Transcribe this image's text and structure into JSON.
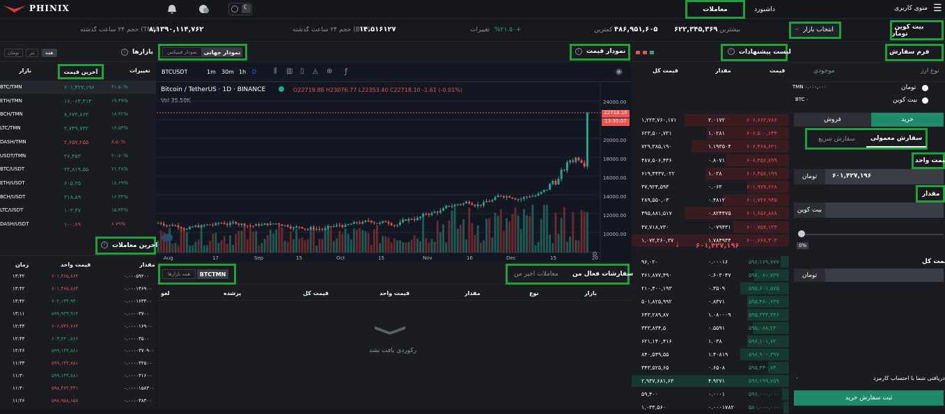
{
  "brand": "PHINIX",
  "nav": {
    "menu": "منوی کاربری",
    "dashboard": "داشبورد",
    "trades": "معاملات"
  },
  "ticker": {
    "pair": "بیت کوین / تومان",
    "market_select": "انتخاب بازار",
    "high_label": "بیشترین",
    "high": "۶۲۲,۳۴۵,۳۶۹",
    "low_label": "کمترین",
    "low": "۴۸۶,۹۵۱,۶۰۵",
    "change_label": "تغییرات",
    "change": "%۲۱.۵۰+",
    "vol_btc_label": "حجم ۲۴ ساعت گذشته (BTC)",
    "vol_btc": "۱۴.۵۱۶۱۲۷",
    "vol_tmn_label": "حجم ۲۴ ساعت گذشته (TMN)",
    "vol_tmn": "۸,۱۳۹۰,۱۱۴,۷۶۲"
  },
  "order_form": {
    "title": "فرم سفارش",
    "asset_type": "نوع ارز",
    "balance": "موجودی",
    "toman_label": "تومان",
    "toman_balance": "TMN ۰.۰۰۰,۰۰۰",
    "btc_label": "بیت کوین",
    "btc_balance": "BTC ۰",
    "buy": "خرید",
    "sell": "فروش",
    "tab_normal": "سفارش معمولی",
    "tab_quick": "سفارش سریع",
    "unit_price_label": "قیمت واحد",
    "unit_price": "۶۰۱,۴۲۷,۱۹۶",
    "unit_toman": "تومان",
    "amount_label": "مقدار",
    "amount_unit": "بیت کوین",
    "slider_pct": "0%",
    "total_label": "قیمت کل",
    "total_unit": "تومان",
    "receive_label": "دریافتی شما با احتساب کارمزد",
    "receive_value": "۰",
    "submit": "ثبت سفارش خرید"
  },
  "orderbook": {
    "title": "لیست پیشنهادات",
    "col_price": "قیمت",
    "col_amount": "مقدار",
    "col_total": "قیمت کل",
    "asks": [
      [
        "۶۰۶,۶۶۲,۷۸۶",
        "۲.۰۱۷۲",
        "۱,۲۲۳,۷۶۰,۱۷۱"
      ],
      [
        "۶۰۶,۵۰۰,۶۴۴",
        "۱.۰۲۸۱",
        "۶۲۳,۵۰۰,۷۲۱"
      ],
      [
        "۶۰۶,۴۶۸,۶۲۱",
        "۱.۱۹۳۵۰۴",
        "۷۲۹,۳۸۵,۱۹۰"
      ],
      [
        "۶۰۶,۴۵۶,۸۹۹",
        "۰.۸۰۷۱",
        "۴۸۷,۵۰۶,۴۳۶"
      ],
      [
        "۶۰۶,۴۵۸,۱۹۹",
        "۱.۰۲۸",
        "۶۱۹,۴۴۳۷,۰۲۲"
      ],
      [
        "۶۰۱,۹۷۷,۶۶۸",
        "۰.۰۶۳",
        "۳۷,۹۲۴,۵۹۳"
      ],
      [
        "۶۰۱,۷۲۶,۹۴۵",
        "۰.۴۸۱۲",
        "۲۸۹,۵۵۰,۰۳"
      ],
      [
        "۶۰۱,۶۵۶,۸۸۸",
        "۰.۸۲۴۴۷۵",
        "۴۹۵,۸۸۱,۵۱۷"
      ],
      [
        "۶۰۰,۷۵۷,۱۲۴",
        "۰.۰۷۹۴۳۱",
        "۴۷,۷۱۸,۷۳۰"
      ],
      [
        "۶۰۰,۷۶۸,۳۰۳",
        "۱.۷۸۴۹۳۴",
        "۱,۰۷۲,۲۶۰,۳۷"
      ]
    ],
    "mid": "۶۰۱,۴۲۷,۱۹۶",
    "bids": [
      [
        "۵۹۶,۱۶۹,۷۷۷",
        "۰.۰۰۰۱۶",
        "۹۶,۰۲۰"
      ],
      [
        "۵۹۶,۰۸۱,۷۳۷",
        "۰.۶۰۳۰۴۷",
        "۳۶۱,۸۷۷,۴۹۰"
      ],
      [
        "۵۹۵,۶۰۱,۵۷۵",
        "۰.۳۵۰۹",
        "۲۱۰,۴۰۰,۱۹۳"
      ],
      [
        "۵۹۵,۴۸۰,۷۳۷",
        "۰.۸۳۷۱",
        "۵۰۱,۸۲۵,۹۹۲"
      ],
      [
        "۵۹۵,۳۳۳,۳۴۶",
        "۱.۰۸۰۰۰۹",
        "۶۴۳,۲۸۹,۸۷"
      ],
      [
        "۵۹۵,۰۸۸,۲۳",
        "۰.۵۵۹۱",
        "۳۳۳,۸۳۴,۵"
      ],
      [
        "۵۹۶,۱۰۱,۷۲",
        "۱.۰۳۸",
        "۶۲۱,۱۴۰,۴۱۶"
      ],
      [
        "۵۹۶,۹۰۰,۳۹۷",
        "۱.۴۰۸۱۹",
        "۸۴۰,۵۴۹,۵۵"
      ],
      [
        "۵۹۵,۴۴۰,۶۴",
        "۰.۶۵۰۸",
        "۳۴۳,۵۲۵,۶۵"
      ],
      [
        "۵۹۶,۱۹۹,۷۵۹",
        "۴.۹۲۷۱",
        "۲,۹۳۷,۶۸۱,۶۳"
      ],
      [
        "۵۹۶,۰۰۰,۰۰۰",
        "۰.۰۰۰۱",
        "۵۹,۴۰۰"
      ],
      [
        "۵۸۰,۰۰۰,۰۰۰",
        "۰.۰۰۰۱۷۸۲",
        "۱,۰۳۳,۵۶۰"
      ]
    ]
  },
  "chart_header": {
    "title": "نمودار قیمت",
    "tab_global": "نمودار جهانی",
    "tab_phinix": "نمودار فینیکس"
  },
  "tv": {
    "symbol": "BTCUSDT",
    "intervals": [
      "1m",
      "30m",
      "1h",
      "D"
    ],
    "legend_title": "Bitcoin / TetherUS · 1D · BINANCE",
    "ohlc": "O22719.88 H23076.77 L22353.40 C22718.10 -1.61 (-0.01%)",
    "vol": "Vol 35.59K",
    "last_price": "22718.10",
    "countdown": "13:35:07",
    "x_labels": [
      "Aug",
      "17",
      "Sep",
      "15",
      "Oct",
      "15",
      "Nov",
      "16",
      "Dec",
      "15",
      "20"
    ],
    "y_labels": [
      "24000.00",
      "22000.00",
      "20000.00",
      "18000.00",
      "16000.00",
      "14000.00",
      "12000.00",
      "10000.00"
    ]
  },
  "markets": {
    "title": "بازارها",
    "filters": [
      "همه",
      "تتر",
      "تومان"
    ],
    "col_change": "تغییرات",
    "col_last": "آخرین قیمت",
    "col_market": "بازار",
    "rows": [
      [
        "BTC/TMN",
        "۶۰۱,۴۲۷,۱۹۶",
        "۲۱.۵۰%",
        "g"
      ],
      [
        "ETH/TMN",
        "۱۶,۰۶۳,۳۱۴",
        "۱۹.۴۹%",
        "g"
      ],
      [
        "BCH/TMN",
        "۸,۶۷۲,۸۶۳",
        "۱۸.۳۲%",
        "g"
      ],
      [
        "LTC/TMN",
        "۲,۷۴۹,۷۳۲",
        "۱۶.۵۳%",
        "g"
      ],
      [
        "DASH/TMN",
        "۲,۶۵۷,۲۵۵",
        "۸.۵۰%",
        "r"
      ],
      [
        "USDT/TMN",
        "۲۶,۴۵۳",
        "۲۰.۷۰%",
        "g"
      ],
      [
        "BTC/USDT",
        "۲۲,۸۱۹.۵۵",
        "۲۱.۴۸%",
        "g"
      ],
      [
        "ETH/USDT",
        "۶۰۵.۳۵",
        "۱۸.۶۹%",
        "g"
      ],
      [
        "BCH/USDT",
        "۳۱۸.۸۹",
        "۱۶.۳۴%",
        "g"
      ],
      [
        "LTC/USDT",
        "۱۰۳.۳۷",
        "۱۵.۴۴%",
        "g"
      ],
      [
        "DASH/USDT",
        "۱۰۰.۶۹",
        "۶.۷۹%",
        "r"
      ]
    ]
  },
  "recent": {
    "title": "آخرین معاملات",
    "col_amount": "مقدار",
    "col_price": "قیمت واحد",
    "col_time": "زمان",
    "rows": [
      [
        "۰.۰۰۰۵۹۲۰۰",
        "۶۰۱,۴۶۵,۸۶۴",
        "۱۳:۴۲",
        "r"
      ],
      [
        "۰.۰۰۰۱۴۶۹۰۰",
        "۶۰۱,۴۶۵,۸۶۴",
        "۱۳:۴۲",
        "r"
      ],
      [
        "۰.۰۰۰۱۶۳۳۰۰",
        "۶۰۲,۱۳۳,۹۴۰",
        "۱۳:۴۲",
        "g"
      ],
      [
        "۰.۰۰۰۰۳۷۰۰",
        "۵۹۹,۹۳۳,۹۱۳",
        "۱۳:۱۱",
        "g"
      ],
      [
        "۰.۰۰۰۰۱۶۹۰۰",
        "۶۰۶,۷۳۶,۶۶۴",
        "۱۲:۴۳",
        "r"
      ],
      [
        "۰.۰۰۰۰۳۵۰۰",
        "۶۰۳,۴۴۰,۸۶۶",
        "۱۲:۴۳",
        "g"
      ],
      [
        "۰.۰۰۰۰۳۷۰۹۰۰",
        "۵۹۹,۱۴۳,۸۸۱",
        "۱۲:۲۶",
        "g"
      ],
      [
        "۰.۰۰۰۰۳۲۵۰۰",
        "۵۹۹,۱۴۴,۸۸۱",
        "۱۱:۳۳",
        "r"
      ],
      [
        "۰.۰۰۰۰۳۱۶۰۰",
        "۵۹۹,۱۴۴,۸۸۱",
        "۱۱:۳۰",
        "g"
      ],
      [
        "۰.۰۰۰۰۱۵۸۳۰۰",
        "۵۹۸,۴۶۲,۳۳۱",
        "۱۱:۳۰",
        "r"
      ],
      [
        "۰.۰۰۰۰۳۸۳۰۰",
        "۵۹۸,۹۵۸,۱۵۸",
        "۱۱:۲۶",
        "r"
      ]
    ]
  },
  "my_orders": {
    "tab_active": "سفارشات فعال من",
    "tab_recent": "معاملات اخیر من",
    "chip_all": "همه بازارها",
    "chip_pair": "BTCTMN",
    "cols": [
      "بازار",
      "نوع",
      "مقدار",
      "قیمت واحد",
      "قیمت کل",
      "پرشده",
      "لغو"
    ],
    "empty": "رکوردی یافت نشد"
  }
}
